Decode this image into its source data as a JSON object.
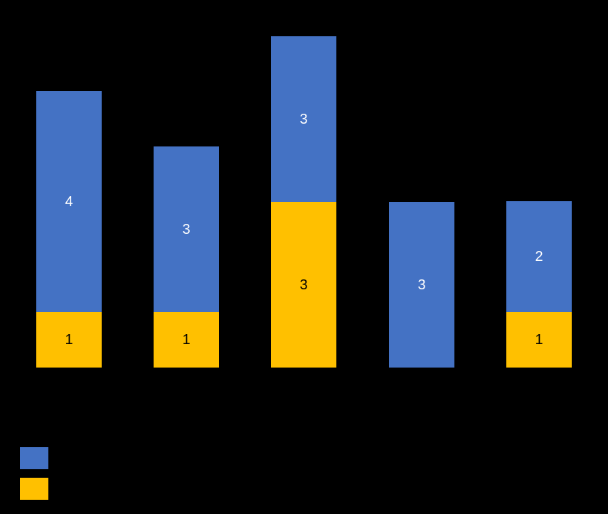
{
  "chart_data": {
    "type": "bar",
    "stacked": true,
    "title": "",
    "xlabel": "",
    "ylabel": "",
    "background_color": "#000000",
    "categories": [
      "",
      "",
      "",
      "",
      ""
    ],
    "series": [
      {
        "name": "",
        "color": "#FFC000",
        "label_color": "#000000",
        "values": [
          1,
          1,
          3,
          0,
          1
        ]
      },
      {
        "name": "",
        "color": "#4472C4",
        "label_color": "#FFFFFF",
        "values": [
          4,
          3,
          3,
          3,
          2
        ]
      }
    ],
    "ylim": [
      0,
      6
    ],
    "grid": false,
    "legend": {
      "position": "bottom-left",
      "items": [
        {
          "swatch_color": "#4472C4",
          "label": ""
        },
        {
          "swatch_color": "#FFC000",
          "label": ""
        }
      ]
    }
  }
}
